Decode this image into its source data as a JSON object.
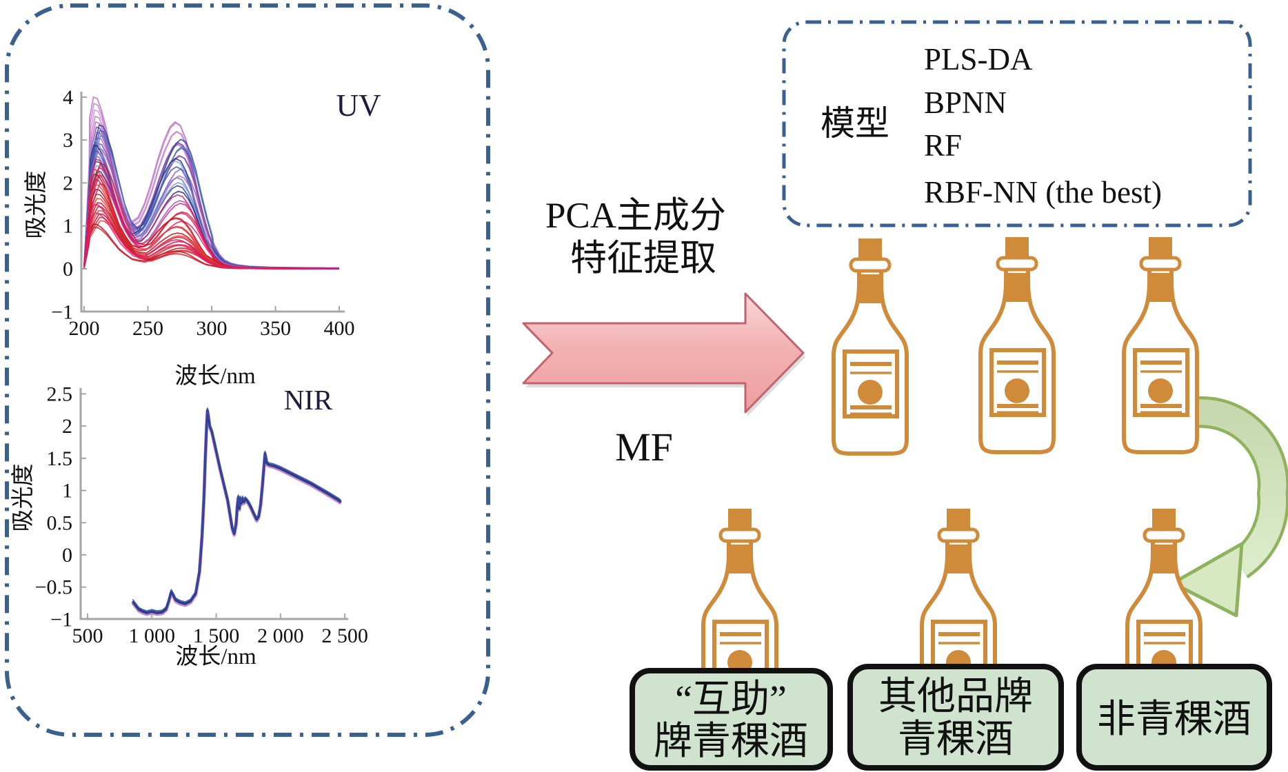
{
  "figure": {
    "pca_label": {
      "line1": "PCA主成分",
      "line2": "特征提取"
    },
    "mf_label": "MF",
    "models": {
      "label": "模型",
      "items": [
        "PLS-DA",
        "BPNN",
        "RF",
        "RBF-NN (the best)"
      ]
    },
    "classes": [
      {
        "line1": "“互助”",
        "line2": "牌青稞酒"
      },
      {
        "line1": "其他品牌",
        "line2": "青稞酒"
      },
      {
        "line1": "非青稞酒",
        "line2": ""
      }
    ],
    "colors": {
      "panel_border_blue": "#3a6090",
      "bottle_orange": "#cf8b3a",
      "pink_arrow_fill": "#f3b2b2",
      "pink_arrow_border": "#c4616e",
      "green_arrow_fill": "#d7e8c2",
      "green_arrow_border": "#8fb35d",
      "class_box_fill": "#d0e3cf",
      "class_box_border": "#111111"
    }
  },
  "chart_data": [
    {
      "type": "line",
      "title": "UV",
      "xlabel": "波长/nm",
      "ylabel": "吸光度",
      "xlim": [
        200,
        400
      ],
      "ylim": [
        -1,
        4
      ],
      "grid": false,
      "legend": "none",
      "xticks": [
        "200",
        "250",
        "300",
        "350",
        "400"
      ],
      "xtick_values": [
        200,
        250,
        300,
        350,
        400
      ],
      "yticks": [
        "4",
        "3",
        "2",
        "1",
        "0",
        "−1"
      ],
      "ytick_values": [
        4,
        3,
        2,
        1,
        0,
        -1
      ],
      "description": "About 44 overlaid UV absorbance spectra of wine samples; two absorption peaks near 210 nm and 275 nm, decaying to 0 above 310 nm. Red/crimson curves lowest, blue curves middle, purple/pink curves highest.",
      "shape_profile": [
        [
          200,
          0.02
        ],
        [
          202,
          0.3
        ],
        [
          204,
          0.62
        ],
        [
          207,
          0.88
        ],
        [
          210,
          1.0
        ],
        [
          213,
          0.99
        ],
        [
          216,
          0.93
        ],
        [
          220,
          0.82
        ],
        [
          225,
          0.63
        ],
        [
          230,
          0.45
        ],
        [
          235,
          0.33
        ],
        [
          240,
          0.28
        ],
        [
          245,
          0.31
        ],
        [
          250,
          0.4
        ],
        [
          255,
          0.52
        ],
        [
          260,
          0.66
        ],
        [
          265,
          0.78
        ],
        [
          270,
          0.87
        ],
        [
          274,
          0.9
        ],
        [
          278,
          0.88
        ],
        [
          282,
          0.8
        ],
        [
          286,
          0.68
        ],
        [
          290,
          0.52
        ],
        [
          294,
          0.37
        ],
        [
          298,
          0.24
        ],
        [
          302,
          0.15
        ],
        [
          306,
          0.09
        ],
        [
          310,
          0.055
        ],
        [
          315,
          0.035
        ],
        [
          320,
          0.025
        ],
        [
          330,
          0.015
        ],
        [
          345,
          0.01
        ],
        [
          360,
          0.008
        ],
        [
          380,
          0.006
        ],
        [
          400,
          0.005
        ]
      ],
      "palette": [
        "#d01a28",
        "#e8403a",
        "#b80f1e",
        "#e5236e",
        "#d6186c",
        "#2a3d9b",
        "#3b57b5",
        "#5b79c9",
        "#809cd8",
        "#272d85",
        "#7c4aa2",
        "#9457b4",
        "#ad6cc4",
        "#c27fd2",
        "#b96fc0",
        "#d393d6"
      ],
      "curves": [
        [
          4.0,
          0.95,
          14
        ],
        [
          3.85,
          0.98,
          13
        ],
        [
          3.7,
          0.96,
          15
        ],
        [
          3.55,
          1.0,
          13
        ],
        [
          3.42,
          0.94,
          14
        ],
        [
          3.3,
          0.99,
          10
        ],
        [
          3.18,
          1.02,
          11
        ],
        [
          3.05,
          0.96,
          12
        ],
        [
          2.92,
          1.0,
          10
        ],
        [
          2.8,
          0.92,
          11
        ],
        [
          3.35,
          1.0,
          5
        ],
        [
          3.22,
          0.97,
          6
        ],
        [
          3.1,
          1.02,
          7
        ],
        [
          3.0,
          0.93,
          8
        ],
        [
          2.88,
          0.99,
          9
        ],
        [
          2.75,
          0.96,
          6
        ],
        [
          2.62,
          0.9,
          7
        ],
        [
          2.5,
          0.86,
          5
        ],
        [
          2.4,
          0.93,
          8
        ],
        [
          2.28,
          0.88,
          9
        ],
        [
          2.7,
          0.89,
          12
        ],
        [
          2.15,
          0.82,
          11
        ],
        [
          2.35,
          0.72,
          3
        ],
        [
          2.18,
          0.66,
          4
        ],
        [
          1.98,
          0.62,
          3
        ],
        [
          2.45,
          0.6,
          0
        ],
        [
          2.32,
          0.56,
          1
        ],
        [
          2.2,
          0.6,
          2
        ],
        [
          2.08,
          0.52,
          0
        ],
        [
          1.96,
          0.56,
          1
        ],
        [
          1.85,
          0.5,
          2
        ],
        [
          1.74,
          0.47,
          0
        ],
        [
          1.64,
          0.52,
          1
        ],
        [
          1.54,
          0.46,
          2
        ],
        [
          1.45,
          0.42,
          0
        ],
        [
          1.36,
          0.46,
          1
        ],
        [
          1.28,
          0.42,
          2
        ],
        [
          1.2,
          0.4,
          0
        ],
        [
          1.12,
          0.4,
          1
        ],
        [
          1.04,
          0.44,
          2
        ],
        [
          0.97,
          0.4,
          0
        ],
        [
          1.5,
          0.5,
          4
        ],
        [
          1.3,
          0.48,
          3
        ],
        [
          2.55,
          0.75,
          4
        ]
      ]
    },
    {
      "type": "line",
      "title": "NIR",
      "xlabel": "波长/nm",
      "ylabel": "吸光度",
      "xlim": [
        500,
        2500
      ],
      "ylim": [
        -1,
        2.5
      ],
      "grid": false,
      "legend": "none",
      "xticks": [
        "500",
        "1 000",
        "1 500",
        "2 000",
        "2 500"
      ],
      "xtick_values": [
        500,
        1000,
        1500,
        2000,
        2500
      ],
      "yticks": [
        "2.5",
        "2",
        "1.5",
        "1",
        "0.5",
        "0",
        "−0.5",
        "−1"
      ],
      "ytick_values": [
        2.5,
        2,
        1.5,
        1,
        0.5,
        0,
        -0.5,
        -1
      ],
      "description": "Tightly overlapping NIR spectra drawn as one thick dark-blue trace with a magenta fringe; baseline near −0.9 from 850–1300 nm, sharp peak 2.25 at ~1430 nm, trough 0.33 at ~1640 nm, jagged bumps 0.8–0.9 around 1660–1840 nm, second peak 1.58 at ~1880 nm, slow decay to 0.82 at 2470 nm.",
      "series": [
        {
          "name": "NIR spectra",
          "color": "#2c3b8c",
          "points": [
            [
              850,
              -0.72
            ],
            [
              880,
              -0.8
            ],
            [
              900,
              -0.85
            ],
            [
              930,
              -0.88
            ],
            [
              960,
              -0.9
            ],
            [
              1000,
              -0.88
            ],
            [
              1040,
              -0.9
            ],
            [
              1080,
              -0.89
            ],
            [
              1110,
              -0.84
            ],
            [
              1130,
              -0.72
            ],
            [
              1150,
              -0.57
            ],
            [
              1165,
              -0.62
            ],
            [
              1185,
              -0.7
            ],
            [
              1220,
              -0.74
            ],
            [
              1260,
              -0.76
            ],
            [
              1300,
              -0.72
            ],
            [
              1340,
              -0.6
            ],
            [
              1370,
              -0.25
            ],
            [
              1390,
              0.3
            ],
            [
              1405,
              0.9
            ],
            [
              1415,
              1.5
            ],
            [
              1425,
              2.0
            ],
            [
              1432,
              2.25
            ],
            [
              1440,
              2.15
            ],
            [
              1450,
              2.0
            ],
            [
              1465,
              1.93
            ],
            [
              1480,
              1.8
            ],
            [
              1500,
              1.62
            ],
            [
              1530,
              1.35
            ],
            [
              1560,
              1.1
            ],
            [
              1590,
              0.85
            ],
            [
              1610,
              0.6
            ],
            [
              1625,
              0.42
            ],
            [
              1640,
              0.33
            ],
            [
              1655,
              0.5
            ],
            [
              1665,
              0.78
            ],
            [
              1672,
              0.9
            ],
            [
              1680,
              0.72
            ],
            [
              1688,
              0.88
            ],
            [
              1695,
              0.8
            ],
            [
              1705,
              0.88
            ],
            [
              1715,
              0.82
            ],
            [
              1725,
              0.87
            ],
            [
              1740,
              0.84
            ],
            [
              1755,
              0.8
            ],
            [
              1775,
              0.72
            ],
            [
              1795,
              0.63
            ],
            [
              1815,
              0.55
            ],
            [
              1830,
              0.6
            ],
            [
              1845,
              0.78
            ],
            [
              1858,
              1.05
            ],
            [
              1870,
              1.35
            ],
            [
              1880,
              1.58
            ],
            [
              1888,
              1.5
            ],
            [
              1895,
              1.42
            ],
            [
              1910,
              1.4
            ],
            [
              1950,
              1.38
            ],
            [
              2000,
              1.34
            ],
            [
              2060,
              1.28
            ],
            [
              2120,
              1.22
            ],
            [
              2180,
              1.16
            ],
            [
              2240,
              1.1
            ],
            [
              2300,
              1.03
            ],
            [
              2360,
              0.96
            ],
            [
              2410,
              0.9
            ],
            [
              2450,
              0.85
            ],
            [
              2470,
              0.82
            ]
          ]
        }
      ]
    }
  ]
}
